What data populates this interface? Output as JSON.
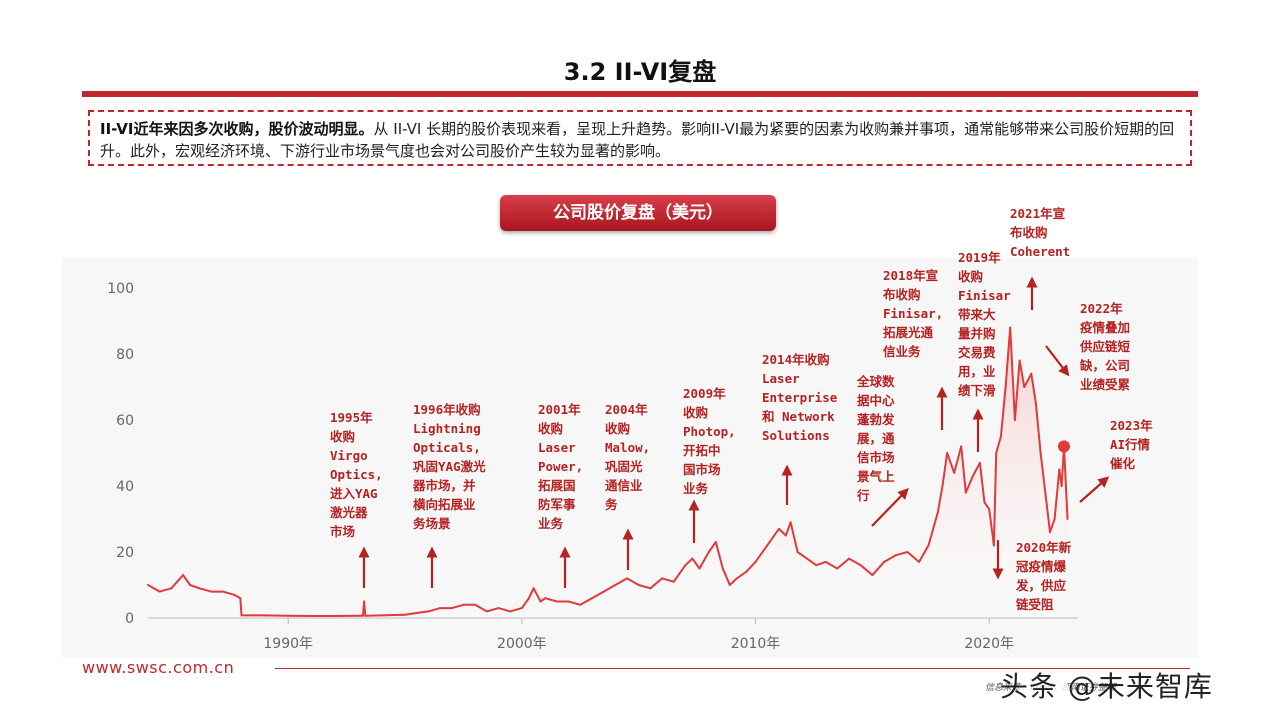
{
  "slide": {
    "title": "3.2 II-VI复盘",
    "summary_bold": "II-VI近年来因多次收购，股价波动明显。",
    "summary_rest": "从 II-VI 长期的股价表现来看，呈现上升趋势。影响II-VI最为紧要的因素为收购兼并事项，通常能够带来公司股价短期的回升。此外，宏观经济环境、下游行业市场景气度也会对公司股价产生较为显著的影响。",
    "chart_badge": "公司股价复盘（美元）",
    "footer_url": "www.swsc.com.cn",
    "footer_source": "信息来源：Wind，西南证券整理",
    "watermark": "头条 @未来智库"
  },
  "colors": {
    "accent": "#c0272d",
    "line": "#e03a3a",
    "fill": "#f7caca",
    "annotation": "#b52222",
    "axis_text": "#666666"
  },
  "chart_data": {
    "type": "line",
    "title": "公司股价复盘（美元）",
    "xlabel": "",
    "ylabel": "",
    "xlim": [
      1984,
      2023.8
    ],
    "ylim": [
      0,
      100
    ],
    "grid": false,
    "legend": "none",
    "x_ticks": [
      "1990年",
      "2000年",
      "2010年",
      "2020年"
    ],
    "y_ticks": [
      "0",
      "20",
      "40",
      "60",
      "80",
      "100"
    ],
    "series": [
      {
        "x": [
          1984.0,
          1984.5,
          1985.0,
          1985.5,
          1985.8,
          1986.2,
          1986.7,
          1987.2,
          1987.7,
          1987.95,
          1988.0,
          1989.0,
          1990.0,
          1991.0,
          1992.0,
          1993.0,
          1993.2,
          1993.25,
          1993.3,
          1994.0,
          1995.0,
          1995.5,
          1996.0,
          1996.5,
          1997.0,
          1997.5,
          1998.0,
          1998.5,
          1999.0,
          1999.5,
          2000.0,
          2000.3,
          2000.5,
          2000.8,
          2001.0,
          2001.5,
          2002.0,
          2002.5,
          2003.0,
          2003.5,
          2004.0,
          2004.5,
          2005.0,
          2005.5,
          2006.0,
          2006.5,
          2007.0,
          2007.3,
          2007.6,
          2008.0,
          2008.3,
          2008.6,
          2008.9,
          2009.2,
          2009.6,
          2010.0,
          2010.5,
          2011.0,
          2011.3,
          2011.5,
          2011.8,
          2012.2,
          2012.6,
          2013.0,
          2013.5,
          2014.0,
          2014.5,
          2015.0,
          2015.5,
          2016.0,
          2016.5,
          2017.0,
          2017.4,
          2017.8,
          2018.0,
          2018.2,
          2018.5,
          2018.8,
          2019.0,
          2019.3,
          2019.6,
          2019.8,
          2020.0,
          2020.2,
          2020.3,
          2020.5,
          2020.7,
          2020.9,
          2021.1,
          2021.3,
          2021.5,
          2021.8,
          2022.0,
          2022.2,
          2022.4,
          2022.6,
          2022.8,
          2023.0,
          2023.1,
          2023.2,
          2023.35
        ],
        "values": [
          10,
          8,
          9,
          13,
          10,
          9,
          8,
          8,
          7,
          6,
          0.8,
          0.8,
          0.7,
          0.6,
          0.6,
          0.7,
          0.7,
          5,
          0.7,
          0.8,
          1.0,
          1.5,
          2,
          3,
          3,
          4,
          4,
          2,
          3,
          2,
          3,
          6,
          9,
          5,
          6,
          5,
          5,
          4,
          6,
          8,
          10,
          12,
          10,
          9,
          12,
          11,
          16,
          18,
          15,
          20,
          23,
          15,
          10,
          12,
          14,
          17,
          22,
          27,
          25,
          29,
          20,
          18,
          16,
          17,
          15,
          18,
          16,
          13,
          17,
          19,
          20,
          17,
          22,
          32,
          40,
          50,
          44,
          52,
          38,
          43,
          47,
          35,
          33,
          22,
          50,
          55,
          70,
          88,
          60,
          78,
          70,
          74,
          65,
          50,
          38,
          26,
          30,
          45,
          40,
          52,
          30
        ]
      }
    ],
    "annotations": [
      "1995年 收购 Virgo Optics，进入YAG 激光器 市场",
      "1996年收购 Lightning Opticals，巩固YAG激光 器市场，并 横向拓展业 务场景",
      "2001年 收购 Laser Power，拓展国 防军事 业务",
      "2004年 收购 Malow，巩固光 通信业 务",
      "2009年 收购 Photop，开拓中 国市场 业务",
      "2014年收购 Laser Enterprise 和 Network Solutions",
      "全球数 据中心 蓬勃发 展，通 信市场 景气上 行",
      "2018年宣 布收购 Finisar，拓展光通 信业务",
      "2019年 收购 Finisar 带来大 量并购 交易费 用，业 绩下滑",
      "2021年宣 布收购 Coherent",
      "2022年 疫情叠加 供应链短 缺，公司 业绩受累",
      "2023年 AI行情 催化",
      "2020年新 冠疫情爆 发，供应 链受阻"
    ]
  },
  "annotation_lines": [
    [
      "1995年",
      "收购",
      "Virgo",
      "Optics,",
      "进入YAG",
      "激光器",
      "市场"
    ],
    [
      "1996年收购",
      "Lightning",
      "Opticals,",
      "巩固YAG激光",
      "器市场，并",
      "横向拓展业",
      "务场景"
    ],
    [
      "2001年",
      "收购",
      "Laser",
      "Power,",
      "拓展国",
      "防军事",
      "业务"
    ],
    [
      "2004年",
      "收购",
      "Malow,",
      "巩固光",
      "通信业",
      "务"
    ],
    [
      "2009年",
      "收购",
      "Photop,",
      "开拓中",
      "国市场",
      "业务"
    ],
    [
      "2014年收购",
      "Laser",
      "Enterprise",
      "和 Network",
      "Solutions"
    ],
    [
      "全球数",
      "据中心",
      "蓬勃发",
      "展，通",
      "信市场",
      "景气上",
      "行"
    ],
    [
      "2018年宣",
      "布收购",
      "Finisar,",
      "拓展光通",
      "信业务"
    ],
    [
      "2019年",
      "收购",
      "Finisar",
      "带来大",
      "量并购",
      "交易费",
      "用，业",
      "绩下滑"
    ],
    [
      "2021年宣",
      "布收购",
      "Coherent"
    ],
    [
      "2022年",
      "疫情叠加",
      "供应链短",
      "缺，公司",
      "业绩受累"
    ],
    [
      "2023年",
      "AI行情",
      "催化"
    ],
    [
      "2020年新",
      "冠疫情爆",
      "发，供应",
      "链受阻"
    ]
  ]
}
